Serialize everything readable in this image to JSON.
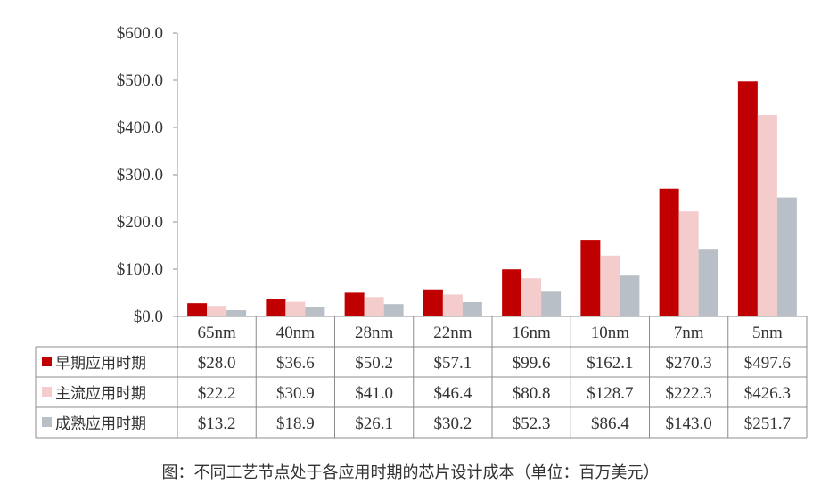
{
  "caption": "图：不同工艺节点处于各应用时期的芯片设计成本（单位：百万美元）",
  "chart_data": {
    "type": "bar",
    "categories": [
      "65nm",
      "40nm",
      "28nm",
      "22nm",
      "16nm",
      "10nm",
      "7nm",
      "5nm"
    ],
    "series": [
      {
        "name": "早期应用时期",
        "color": "#c00000",
        "values": [
          28.0,
          36.6,
          50.2,
          57.1,
          99.6,
          162.1,
          270.3,
          497.6
        ],
        "labels": [
          "$28.0",
          "$36.6",
          "$50.2",
          "$57.1",
          "$99.6",
          "$162.1",
          "$270.3",
          "$497.6"
        ]
      },
      {
        "name": "主流应用时期",
        "color": "#f4cccc",
        "values": [
          22.2,
          30.9,
          41.0,
          46.4,
          80.8,
          128.7,
          222.3,
          426.3
        ],
        "labels": [
          "$22.2",
          "$30.9",
          "$41.0",
          "$46.4",
          "$80.8",
          "$128.7",
          "$222.3",
          "$426.3"
        ]
      },
      {
        "name": "成熟应用时期",
        "color": "#b8bfc6",
        "values": [
          13.2,
          18.9,
          26.1,
          30.2,
          52.3,
          86.4,
          143.0,
          251.7
        ],
        "labels": [
          "$13.2",
          "$18.9",
          "$26.1",
          "$30.2",
          "$52.3",
          "$86.4",
          "$143.0",
          "$251.7"
        ]
      }
    ],
    "ylim": [
      0,
      600
    ],
    "yticks": [
      "$0.0",
      "$100.0",
      "$200.0",
      "$300.0",
      "$400.0",
      "$500.0",
      "$600.0"
    ],
    "ytick_values": [
      0,
      100,
      200,
      300,
      400,
      500,
      600
    ],
    "grid": false,
    "legend": "data-table-left"
  }
}
